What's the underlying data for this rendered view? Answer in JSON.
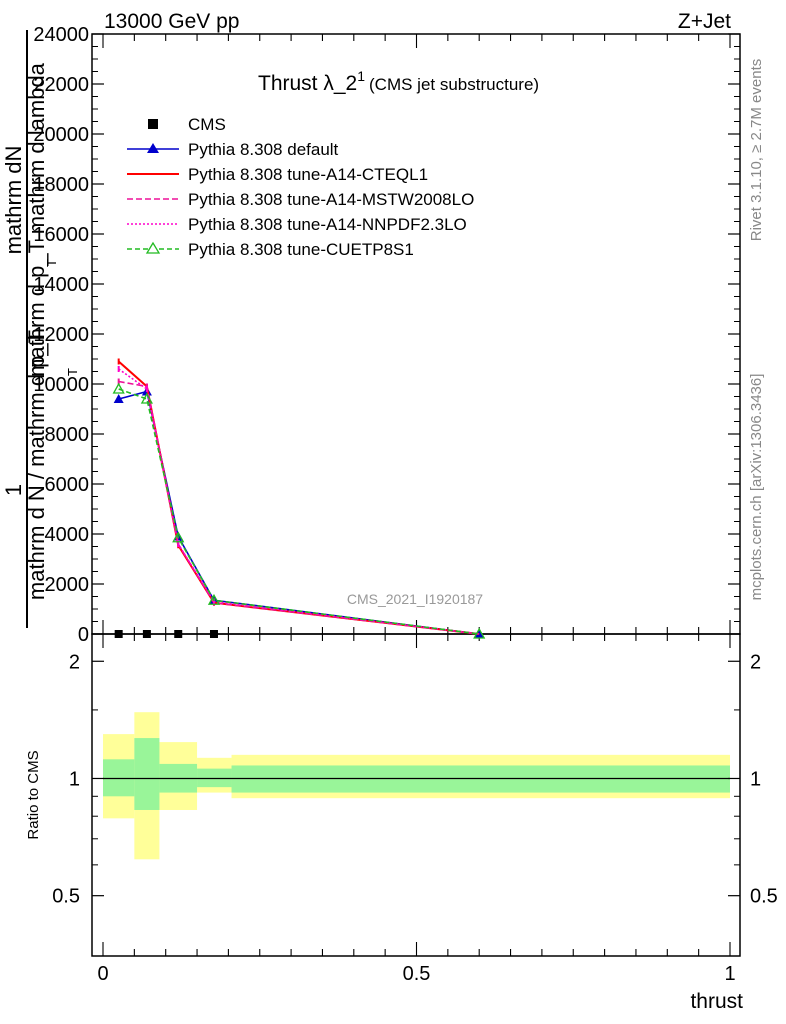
{
  "header": {
    "left": "13000 GeV pp",
    "right": "Z+Jet"
  },
  "title": {
    "main": "Thrust λ_2",
    "sup": "1",
    "sub": "(CMS jet substructure)"
  },
  "side_labels": {
    "rivet": "Rivet 3.1.10, ≥ 2.7M events",
    "mcplots": "mcplots.cern.ch [arXiv:1306.3436]"
  },
  "watermark": "CMS_2021_I1920187",
  "ylabel_main": {
    "numerator": "mathrm dN",
    "one": "1",
    "denominator": "mathrm d N / mathrm d p_T",
    "sub_t": "T",
    "line2": "mathrm d p_T mathrm d lambda",
    "line2_sub": "T"
  },
  "ylabel_ratio": "Ratio to CMS",
  "xlabel": "thrust",
  "legend": [
    {
      "label": "CMS",
      "color": "#000000",
      "dash": "",
      "marker": "square"
    },
    {
      "label": "Pythia 8.308 default",
      "color": "#0000cc",
      "dash": "",
      "marker": "triangle"
    },
    {
      "label": "Pythia 8.308 tune-A14-CTEQL1",
      "color": "#ff0000",
      "dash": "",
      "marker": "none"
    },
    {
      "label": "Pythia 8.308 tune-A14-MSTW2008LO",
      "color": "#ee1199",
      "dash": "6,3",
      "marker": "none"
    },
    {
      "label": "Pythia 8.308 tune-A14-NNPDF2.3LO",
      "color": "#ff00cc",
      "dash": "2,2",
      "marker": "none"
    },
    {
      "label": "Pythia 8.308 tune-CUETP8S1",
      "color": "#22bb22",
      "dash": "5,3",
      "marker": "triangle-open"
    }
  ],
  "chart_data": [
    {
      "type": "line",
      "panel": "main",
      "ylim": [
        0,
        24000
      ],
      "xlim": [
        -0.02,
        1.0
      ],
      "yticks": [
        0,
        2000,
        4000,
        6000,
        8000,
        10000,
        12000,
        14000,
        16000,
        18000,
        20000,
        22000,
        24000
      ],
      "ytick_labels": [
        "0",
        "2000",
        "4000",
        "6000",
        "8000",
        "10000",
        "12000",
        "14000",
        "16000",
        "18000",
        "20000",
        "22000",
        "24000"
      ],
      "x": [
        0.025,
        0.07,
        0.12,
        0.177,
        0.6
      ],
      "series": [
        {
          "name": "CMS",
          "values": [
            0,
            0,
            0,
            0,
            null
          ]
        },
        {
          "name": "Pythia 8.308 default",
          "values": [
            9400,
            9700,
            3900,
            1350,
            0
          ]
        },
        {
          "name": "Pythia 8.308 tune-A14-CTEQL1",
          "values": [
            10900,
            9900,
            3550,
            1250,
            0
          ]
        },
        {
          "name": "Pythia 8.308 tune-A14-MSTW2008LO",
          "values": [
            10100,
            9900,
            3600,
            1250,
            0
          ]
        },
        {
          "name": "Pythia 8.308 tune-A14-NNPDF2.3LO",
          "values": [
            10600,
            9800,
            3600,
            1300,
            0
          ]
        },
        {
          "name": "Pythia 8.308 tune-CUETP8S1",
          "values": [
            9800,
            9400,
            3850,
            1350,
            0
          ]
        }
      ]
    },
    {
      "type": "area",
      "panel": "ratio",
      "ylim": [
        0.35,
        2.35
      ],
      "yscale": "log",
      "yticks": [
        0.5,
        1,
        2
      ],
      "ytick_labels": [
        "0.5",
        "1",
        "2"
      ],
      "xticks": [
        0,
        0.5,
        1
      ],
      "xtick_labels": [
        "0",
        "0.5",
        "1"
      ],
      "bins": [
        [
          0.0,
          0.05
        ],
        [
          0.05,
          0.09
        ],
        [
          0.09,
          0.15
        ],
        [
          0.15,
          0.205
        ],
        [
          0.205,
          1.0
        ]
      ],
      "band_inner": [
        [
          0.9,
          1.12
        ],
        [
          0.83,
          1.27
        ],
        [
          0.92,
          1.09
        ],
        [
          0.95,
          1.06
        ],
        [
          0.92,
          1.08
        ]
      ],
      "band_outer": [
        [
          0.79,
          1.3
        ],
        [
          0.62,
          1.48
        ],
        [
          0.83,
          1.24
        ],
        [
          0.92,
          1.13
        ],
        [
          0.89,
          1.15
        ]
      ],
      "reference": 1
    }
  ],
  "colors": {
    "band_inner": "#99f599",
    "band_outer": "#ffff99"
  }
}
